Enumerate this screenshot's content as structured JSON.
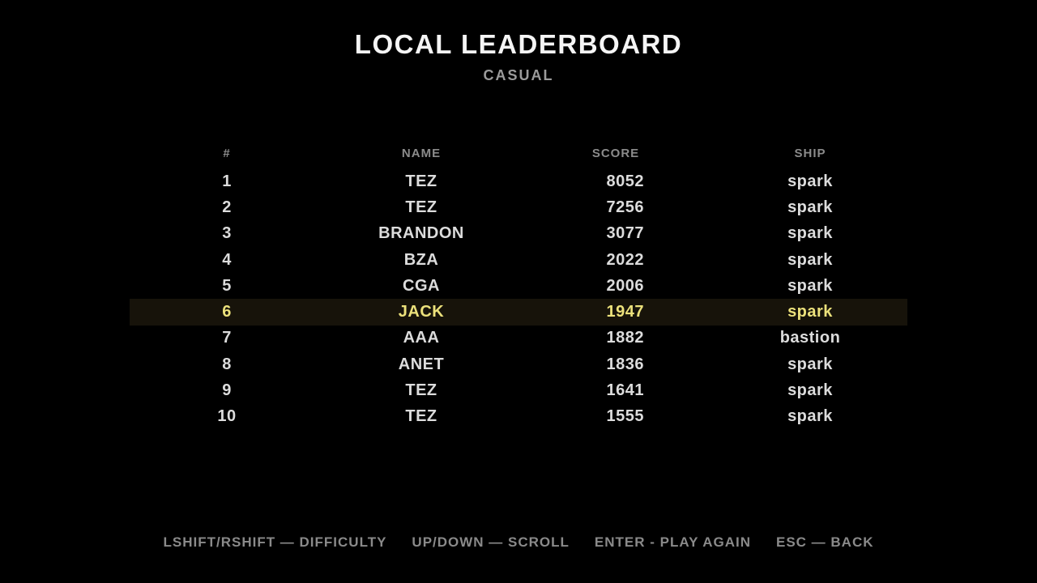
{
  "screen": {
    "title": "LOCAL LEADERBOARD",
    "subtitle": "CASUAL"
  },
  "table": {
    "columns": [
      "#",
      "NAME",
      "SCORE",
      "SHIP"
    ],
    "rows": [
      {
        "rank": "1",
        "name": "TEZ",
        "score": "8052",
        "ship": "spark",
        "highlighted": false
      },
      {
        "rank": "2",
        "name": "TEZ",
        "score": "7256",
        "ship": "spark",
        "highlighted": false
      },
      {
        "rank": "3",
        "name": "BRANDON",
        "score": "3077",
        "ship": "spark",
        "highlighted": false
      },
      {
        "rank": "4",
        "name": "BZA",
        "score": "2022",
        "ship": "spark",
        "highlighted": false
      },
      {
        "rank": "5",
        "name": "CGA",
        "score": "2006",
        "ship": "spark",
        "highlighted": false
      },
      {
        "rank": "6",
        "name": "JACK",
        "score": "1947",
        "ship": "spark",
        "highlighted": true
      },
      {
        "rank": "7",
        "name": "AAA",
        "score": "1882",
        "ship": "bastion",
        "highlighted": false
      },
      {
        "rank": "8",
        "name": "ANET",
        "score": "1836",
        "ship": "spark",
        "highlighted": false
      },
      {
        "rank": "9",
        "name": "TEZ",
        "score": "1641",
        "ship": "spark",
        "highlighted": false
      },
      {
        "rank": "10",
        "name": "TEZ",
        "score": "1555",
        "ship": "spark",
        "highlighted": false
      }
    ]
  },
  "footer": {
    "hints": [
      "LSHIFT/RSHIFT — DIFFICULTY",
      "UP/DOWN — SCROLL",
      "ENTER - PLAY AGAIN",
      "ESC — BACK"
    ]
  },
  "colors": {
    "background": "#000000",
    "title": "#f5f5f5",
    "subtitle": "#9b9b9b",
    "header_text": "#8b8b8b",
    "row_text": "#dcdcdc",
    "highlight_background": "#17130a",
    "highlight_text": "#ece17b",
    "footer_text": "#8a8a8a"
  }
}
